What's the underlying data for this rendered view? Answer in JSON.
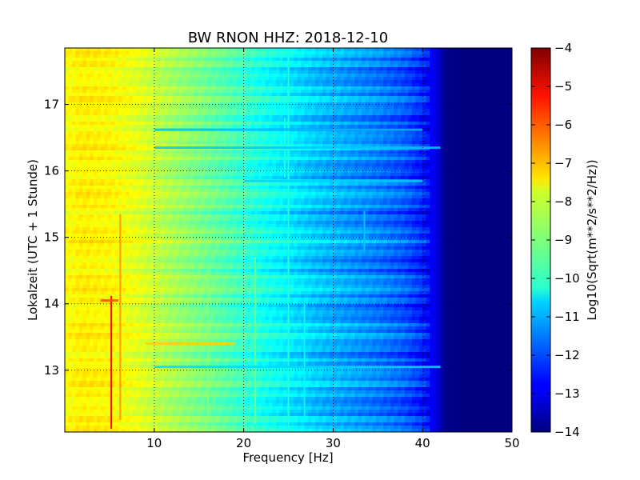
{
  "chart_data": {
    "type": "heatmap",
    "title": "BW RNON HHZ: 2018-12-10",
    "xlabel": "Frequency [Hz]",
    "ylabel": "Lokalzeit (UTC + 1 Stunde)",
    "xlim": [
      0,
      50
    ],
    "ylim": [
      17.85,
      12.07
    ],
    "xticks": [
      10,
      20,
      30,
      40,
      50
    ],
    "yticks": [
      13,
      14,
      15,
      16,
      17
    ],
    "grid": true,
    "colorbar": {
      "label": "Log10(Sqrt(m**2/s**2/Hz))",
      "range": [
        -14,
        -4
      ],
      "ticks": [
        -4,
        -5,
        -6,
        -7,
        -8,
        -9,
        -10,
        -11,
        -12,
        -13,
        -14
      ],
      "colormap": "jet"
    },
    "spectrum_profile": {
      "frequency_hz": [
        0,
        2,
        5,
        8,
        10,
        12,
        15,
        18,
        20,
        22,
        25,
        28,
        30,
        33,
        35,
        38,
        40,
        41.5,
        42.5,
        45,
        50
      ],
      "level": [
        -7.8,
        -7.6,
        -7.7,
        -8.0,
        -8.3,
        -8.6,
        -9.0,
        -9.4,
        -9.7,
        -10.0,
        -10.4,
        -10.8,
        -11.0,
        -11.3,
        -11.5,
        -11.9,
        -12.4,
        -13.0,
        -13.9,
        -14.0,
        -14.0
      ]
    },
    "line_features": [
      {
        "freq": 5.2,
        "t_start": 12.12,
        "t_end": 14.12,
        "level": -5.3
      },
      {
        "freq": 6.2,
        "t_start": 12.25,
        "t_end": 15.35,
        "level": -6.8
      },
      {
        "freq": 16.0,
        "t_start": 12.2,
        "t_end": 14.5,
        "level": -8.9
      },
      {
        "freq": 21.3,
        "t_start": 12.2,
        "t_end": 14.7,
        "level": -9.2
      },
      {
        "freq": 25.0,
        "t_start": 12.1,
        "t_end": 17.85,
        "level": -9.9
      },
      {
        "freq": 24.6,
        "t_start": 15.9,
        "t_end": 16.8,
        "level": -10.0
      },
      {
        "freq": 26.8,
        "t_start": 12.3,
        "t_end": 14.0,
        "level": -10.3
      },
      {
        "freq": 33.5,
        "t_start": 14.8,
        "t_end": 15.4,
        "level": -10.8
      }
    ],
    "band_features": [
      {
        "time": 13.4,
        "f_start": 9.0,
        "f_end": 19.0,
        "level": -7.3
      },
      {
        "time": 13.05,
        "f_start": 10.0,
        "f_end": 42.0,
        "level": -10.6
      },
      {
        "time": 16.35,
        "f_start": 10.0,
        "f_end": 42.0,
        "level": -10.8
      },
      {
        "time": 16.62,
        "f_start": 10.0,
        "f_end": 40.0,
        "level": -10.9
      },
      {
        "time": 15.85,
        "f_start": 20.0,
        "f_end": 40.0,
        "level": -10.7
      },
      {
        "time": 14.05,
        "f_start": 4.0,
        "f_end": 6.0,
        "level": -6.0
      }
    ]
  }
}
